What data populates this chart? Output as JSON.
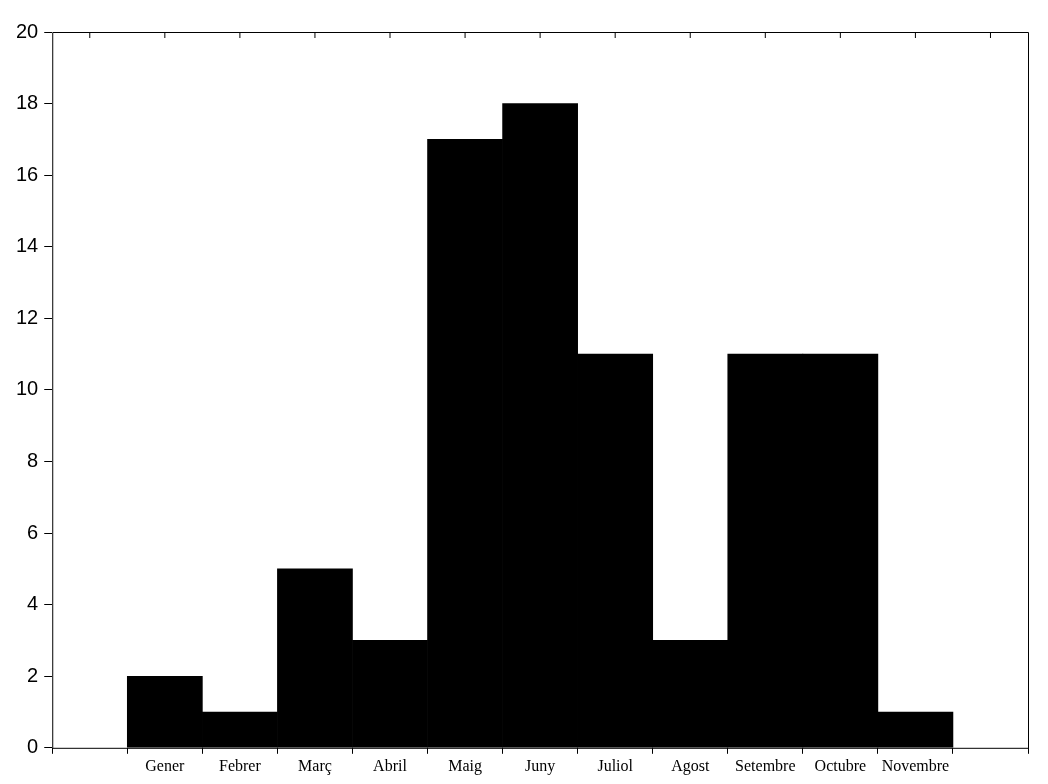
{
  "chart_data": {
    "type": "bar",
    "categories": [
      null,
      "Gener",
      "Febrer",
      "Març",
      "Abril",
      "Maig",
      "Juny",
      "Juliol",
      "Agost",
      "Setembre",
      "Octubre",
      "Novembre",
      null
    ],
    "values": [
      null,
      2,
      1,
      5,
      3,
      17,
      18,
      11,
      3,
      11,
      11,
      1,
      null
    ],
    "color": "#000000",
    "ylim": [
      0,
      20
    ],
    "yticks": [
      0,
      2,
      4,
      6,
      8,
      10,
      12,
      14,
      16,
      18,
      20
    ],
    "grid": false,
    "legend": false
  }
}
